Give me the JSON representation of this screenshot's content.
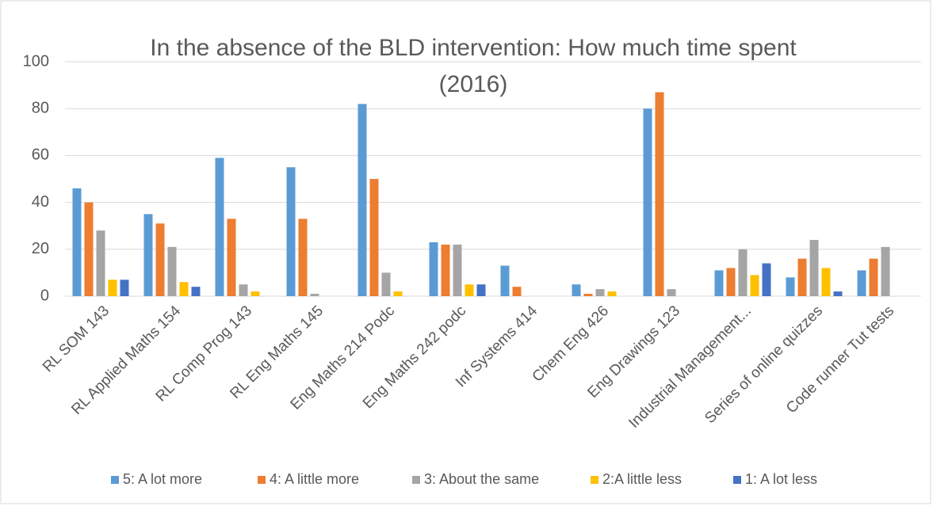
{
  "chart_data": {
    "type": "bar",
    "title": "In the absence of the BLD intervention: How much time spent (2016)",
    "categories": [
      "RL SOM 143",
      "RL Applied Maths 154",
      "RL Comp Prog 143",
      "RL Eng Maths 145",
      "Eng Maths 214 Podc",
      "Eng Maths 242 podc",
      "Inf Systems 414",
      "Chem Eng 426",
      "Eng Drawings 123",
      "Industrial Management...",
      "Series of online quizzes",
      "Code runner Tut tests"
    ],
    "series": [
      {
        "name": "5: A lot more",
        "color": "#5b9bd5",
        "values": [
          46,
          35,
          59,
          55,
          82,
          23,
          13,
          5,
          80,
          11,
          8,
          11
        ]
      },
      {
        "name": "4: A little more",
        "color": "#ed7d31",
        "values": [
          40,
          31,
          33,
          33,
          50,
          22,
          4,
          1,
          87,
          12,
          16,
          16
        ]
      },
      {
        "name": "3: About the same",
        "color": "#a5a5a5",
        "values": [
          28,
          21,
          5,
          1,
          10,
          22,
          0,
          3,
          3,
          20,
          24,
          21
        ]
      },
      {
        "name": "2:A little less",
        "color": "#ffc000",
        "values": [
          7,
          6,
          2,
          0,
          2,
          5,
          0,
          2,
          0,
          9,
          12,
          0
        ]
      },
      {
        "name": "1: A lot less",
        "color": "#4472c4",
        "values": [
          7,
          4,
          0,
          0,
          0,
          5,
          0,
          0,
          0,
          14,
          2,
          0
        ]
      }
    ],
    "ylim": [
      0,
      100
    ],
    "yticks": [
      0,
      20,
      40,
      60,
      80,
      100
    ],
    "grid": true,
    "legend": "bottom"
  }
}
